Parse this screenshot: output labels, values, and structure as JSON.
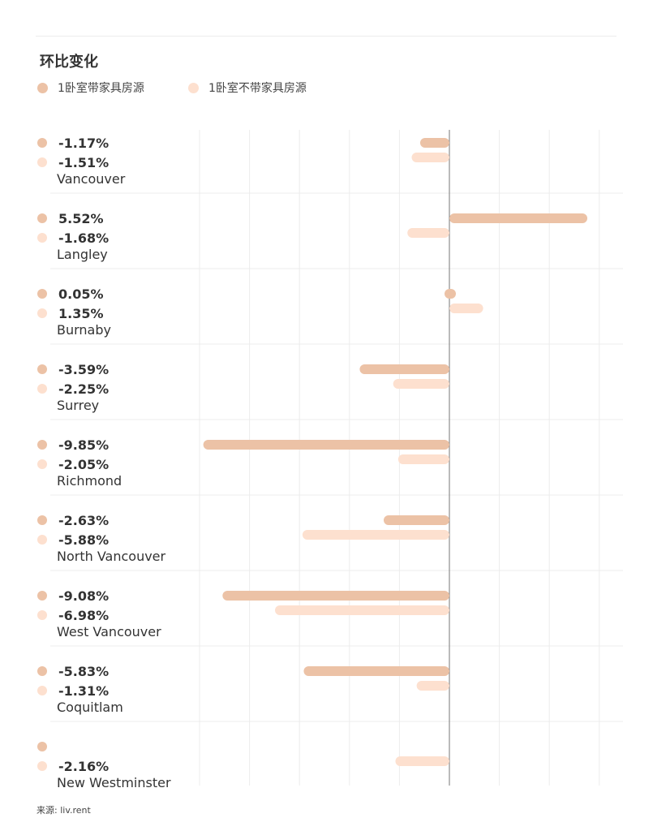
{
  "colors": {
    "furnished": "#ecc2a6",
    "unfurnished": "#fde0cf",
    "grid": "#ececec",
    "zero_line": "#777777"
  },
  "chart_data": {
    "type": "bar",
    "orientation": "horizontal",
    "title": "环比变化",
    "legend": [
      "1卧室带家具房源",
      "1卧室不带家具房源"
    ],
    "xlim": [
      -11,
      6
    ],
    "grid_step": 2,
    "categories": [
      "Vancouver",
      "Langley",
      "Burnaby",
      "Surrey",
      "Richmond",
      "North Vancouver",
      "West Vancouver",
      "Coquitlam",
      "New Westminster"
    ],
    "series": [
      {
        "name": "1卧室带家具房源",
        "values": [
          -1.17,
          5.52,
          0.05,
          -3.59,
          -9.85,
          -2.63,
          -9.08,
          -5.83,
          null
        ],
        "labels": [
          "-1.17%",
          "5.52%",
          "0.05%",
          "-3.59%",
          "-9.85%",
          "-2.63%",
          "-9.08%",
          "-5.83%",
          ""
        ]
      },
      {
        "name": "1卧室不带家具房源",
        "values": [
          -1.51,
          -1.68,
          1.35,
          -2.25,
          -2.05,
          -5.88,
          -6.98,
          -1.31,
          -2.16
        ],
        "labels": [
          "-1.51%",
          "-1.68%",
          "1.35%",
          "-2.25%",
          "-2.05%",
          "-5.88%",
          "-6.98%",
          "-1.31%",
          "-2.16%"
        ]
      }
    ]
  },
  "footer": {
    "source": "来源: liv.rent"
  }
}
